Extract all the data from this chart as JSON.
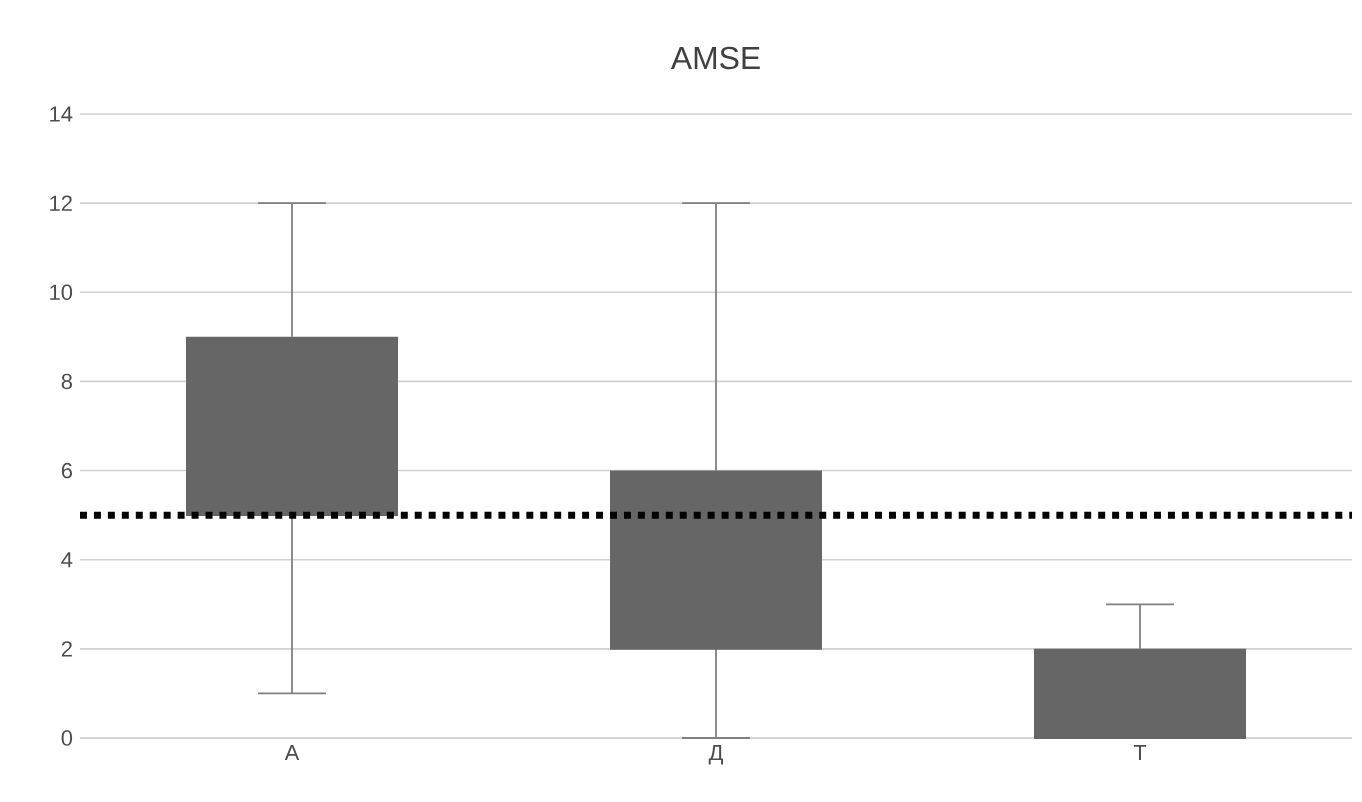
{
  "chart_data": {
    "type": "box",
    "title": "AMSE",
    "categories": [
      "А",
      "Д",
      "Т"
    ],
    "boxes": [
      {
        "low": 1,
        "q1": 5,
        "median": 5,
        "q3": 9,
        "high": 12
      },
      {
        "low": 0,
        "q1": 2,
        "median": 2,
        "q3": 6,
        "high": 12
      },
      {
        "low": 0,
        "q1": 0,
        "median": 0,
        "q3": 2,
        "high": 3
      }
    ],
    "color": "#666666",
    "ylim": [
      0,
      14
    ],
    "yticks": [
      0,
      2,
      4,
      6,
      8,
      10,
      12,
      14
    ],
    "grid": "y",
    "ref_lines": [
      {
        "axis": "y",
        "value": 5,
        "color": "#000000",
        "line_style": "dotted"
      }
    ]
  }
}
